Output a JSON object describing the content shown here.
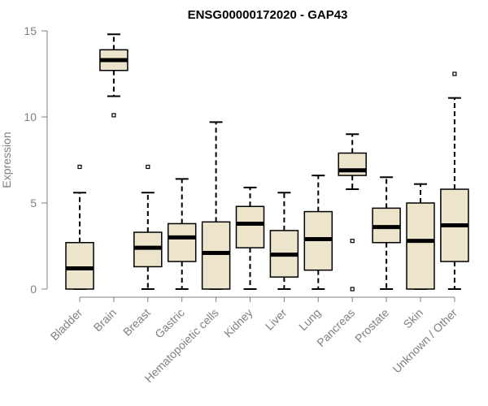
{
  "chart_data": {
    "type": "box",
    "title": "ENSG00000172020 - GAP43",
    "xlabel": "",
    "ylabel": "Expression",
    "ylim": [
      0,
      15
    ],
    "yticks": [
      0,
      5,
      10,
      15
    ],
    "grid": false,
    "legend": "none",
    "colors": {
      "box_fill": "#ede4cc",
      "box_stroke": "#000000",
      "axis": "#808080",
      "text": "#808080"
    },
    "categories": [
      "Bladder",
      "Brain",
      "Breast",
      "Gastric",
      "Hematopoietic cells",
      "Kidney",
      "Liver",
      "Lung",
      "Pancreas",
      "Prostate",
      "Skin",
      "Unknown / Other"
    ],
    "boxes": [
      {
        "category": "Bladder",
        "min": 0,
        "q1": 0,
        "median": 1.2,
        "q3": 2.7,
        "max": 5.6,
        "outliers": [
          7.1
        ]
      },
      {
        "category": "Brain",
        "min": 11.2,
        "q1": 12.7,
        "median": 13.3,
        "q3": 13.9,
        "max": 14.8,
        "outliers": [
          10.1
        ]
      },
      {
        "category": "Breast",
        "min": 0,
        "q1": 1.3,
        "median": 2.4,
        "q3": 3.3,
        "max": 5.6,
        "outliers": [
          7.1
        ]
      },
      {
        "category": "Gastric",
        "min": 0,
        "q1": 1.6,
        "median": 3.0,
        "q3": 3.8,
        "max": 6.4,
        "outliers": []
      },
      {
        "category": "Hematopoietic cells",
        "min": 0,
        "q1": 0,
        "median": 2.1,
        "q3": 3.9,
        "max": 9.7,
        "outliers": []
      },
      {
        "category": "Kidney",
        "min": 0,
        "q1": 2.4,
        "median": 3.8,
        "q3": 4.8,
        "max": 5.9,
        "outliers": []
      },
      {
        "category": "Liver",
        "min": 0,
        "q1": 0.7,
        "median": 2.0,
        "q3": 3.4,
        "max": 5.6,
        "outliers": []
      },
      {
        "category": "Lung",
        "min": 0,
        "q1": 1.1,
        "median": 2.9,
        "q3": 4.5,
        "max": 6.6,
        "outliers": []
      },
      {
        "category": "Pancreas",
        "min": 5.8,
        "q1": 6.6,
        "median": 6.9,
        "q3": 7.9,
        "max": 9.0,
        "outliers": [
          2.8,
          0
        ]
      },
      {
        "category": "Prostate",
        "min": 0,
        "q1": 2.7,
        "median": 3.6,
        "q3": 4.7,
        "max": 6.5,
        "outliers": []
      },
      {
        "category": "Skin",
        "min": 0,
        "q1": 0,
        "median": 2.8,
        "q3": 5.0,
        "max": 6.1,
        "outliers": []
      },
      {
        "category": "Unknown / Other",
        "min": 0,
        "q1": 1.6,
        "median": 3.7,
        "q3": 5.8,
        "max": 11.1,
        "outliers": [
          12.5
        ]
      }
    ]
  }
}
